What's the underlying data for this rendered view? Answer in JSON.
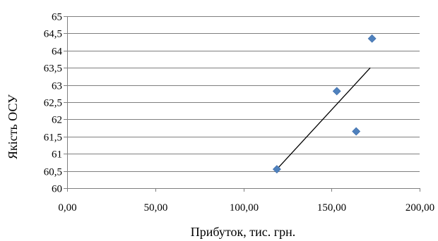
{
  "chart_data": {
    "type": "scatter",
    "title": "",
    "xlabel": "Прибуток, тис. грн.",
    "ylabel": "Якість ОСУ",
    "xlim": [
      0,
      200
    ],
    "ylim": [
      60,
      65
    ],
    "x_tick_values": [
      0,
      50,
      100,
      150,
      200
    ],
    "y_tick_values": [
      60,
      60.5,
      61,
      61.5,
      62,
      62.5,
      63,
      63.5,
      64,
      64.5,
      65
    ],
    "x_tick_labels": [
      "0,00",
      "50,00",
      "100,00",
      "150,00",
      "200,00"
    ],
    "y_tick_labels": [
      "60",
      "60,5",
      "61",
      "61,5",
      "62",
      "62,5",
      "63",
      "63,5",
      "64",
      "64,5",
      "65"
    ],
    "grid": {
      "horizontal": true,
      "vertical": false
    },
    "series": [
      {
        "points": [
          {
            "x": 119,
            "y": 60.55
          },
          {
            "x": 153,
            "y": 62.82
          },
          {
            "x": 164,
            "y": 61.65
          },
          {
            "x": 173,
            "y": 64.35
          }
        ]
      }
    ],
    "trendline": {
      "type": "linear",
      "from": {
        "x": 119,
        "y": 60.55
      },
      "to": {
        "x": 172,
        "y": 63.5
      }
    },
    "colors": {
      "marker": "#4F81BD",
      "trendline": "#000000",
      "grid": "#7f7f7f"
    }
  }
}
